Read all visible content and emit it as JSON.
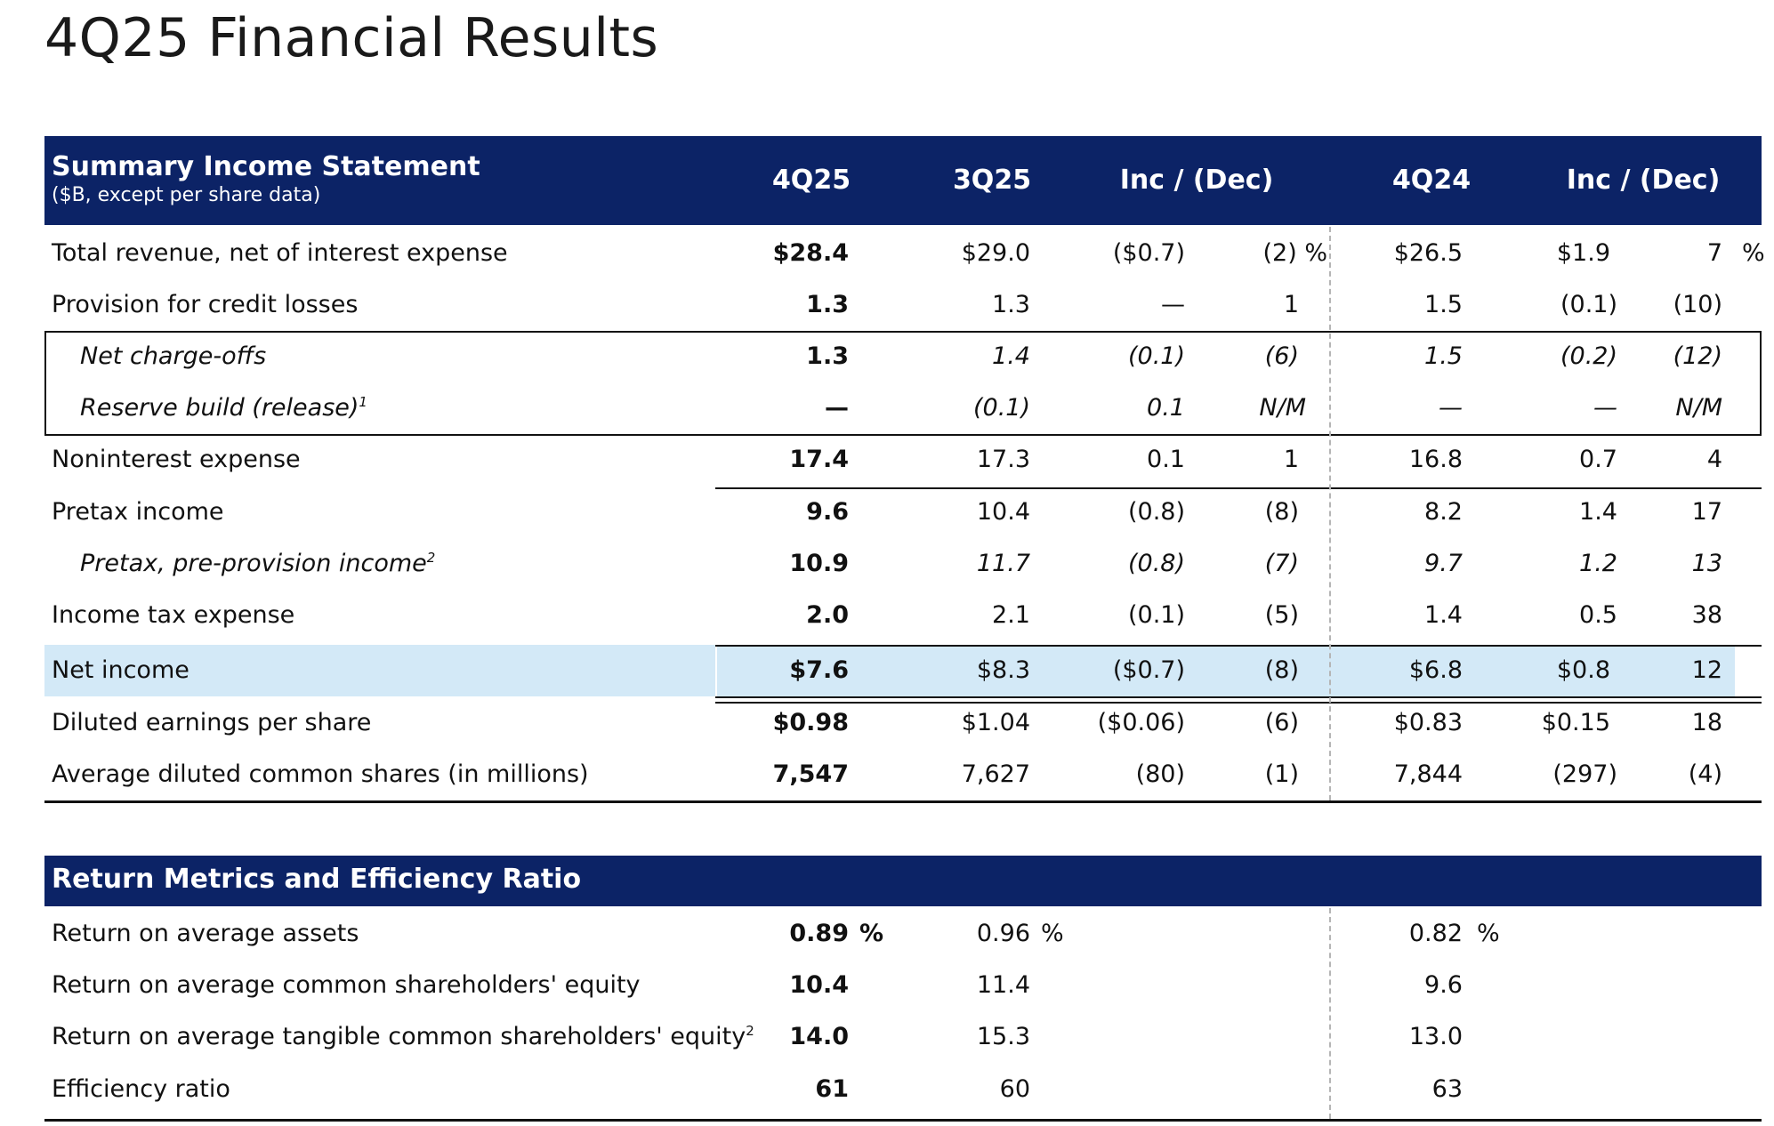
{
  "title": "4Q25 Financial Results",
  "income": {
    "header_title": "Summary Income Statement",
    "header_subtitle": "($B, except per share data)",
    "columns": [
      "4Q25",
      "3Q25",
      "Inc / (Dec)",
      "4Q24",
      "Inc / (Dec)"
    ],
    "rows": [
      {
        "label": "Total revenue, net of interest expense",
        "sup": "",
        "cells": [
          "$28.4",
          "$29.0",
          "($0.7)",
          "(2) %",
          "$26.5",
          "$1.9",
          "7",
          "%"
        ]
      },
      {
        "label": "Provision for credit losses",
        "sup": "",
        "cells": [
          "1.3",
          "1.3",
          "—",
          "1",
          "1.5",
          "(0.1)",
          "(10)",
          ""
        ]
      },
      {
        "label": "Net charge-offs",
        "sup": "",
        "cells": [
          "1.3",
          "1.4",
          "(0.1)",
          "(6)",
          "1.5",
          "(0.2)",
          "(12)",
          ""
        ]
      },
      {
        "label": "Reserve build (release)",
        "sup": "1",
        "cells": [
          "—",
          "(0.1)",
          "0.1",
          "N/M",
          "—",
          "—",
          "N/M",
          ""
        ]
      },
      {
        "label": "Noninterest expense",
        "sup": "",
        "cells": [
          "17.4",
          "17.3",
          "0.1",
          "1",
          "16.8",
          "0.7",
          "4",
          ""
        ]
      },
      {
        "label": "Pretax income",
        "sup": "",
        "cells": [
          "9.6",
          "10.4",
          "(0.8)",
          "(8)",
          "8.2",
          "1.4",
          "17",
          ""
        ]
      },
      {
        "label": "Pretax, pre-provision income",
        "sup": "2",
        "cells": [
          "10.9",
          "11.7",
          "(0.8)",
          "(7)",
          "9.7",
          "1.2",
          "13",
          ""
        ]
      },
      {
        "label": "Income tax expense",
        "sup": "",
        "cells": [
          "2.0",
          "2.1",
          "(0.1)",
          "(5)",
          "1.4",
          "0.5",
          "38",
          ""
        ]
      },
      {
        "label": "Net income",
        "sup": "",
        "cells": [
          "$7.6",
          "$8.3",
          "($0.7)",
          "(8)",
          "$6.8",
          "$0.8",
          "12",
          ""
        ]
      },
      {
        "label": "Diluted earnings per share",
        "sup": "",
        "cells": [
          "$0.98",
          "$1.04",
          "($0.06)",
          "(6)",
          "$0.83",
          "$0.15",
          "18",
          ""
        ]
      },
      {
        "label": "Average diluted common shares (in millions)",
        "sup": "",
        "cells": [
          "7,547",
          "7,627",
          "(80)",
          "(1)",
          "7,844",
          "(297)",
          "(4)",
          ""
        ]
      }
    ]
  },
  "returns": {
    "header_title": "Return Metrics and Efficiency Ratio",
    "rows": [
      {
        "label": "Return on average assets",
        "sup": "",
        "cells": [
          "0.89",
          "%",
          "0.96",
          "%",
          "0.82",
          "%"
        ]
      },
      {
        "label": "Return on average common shareholders' equity",
        "sup": "",
        "cells": [
          "10.4",
          "",
          "11.4",
          "",
          "9.6",
          ""
        ]
      },
      {
        "label": "Return on average tangible common shareholders' equity",
        "sup": "2",
        "cells": [
          "14.0",
          "",
          "15.3",
          "",
          "13.0",
          ""
        ]
      },
      {
        "label": "Efficiency ratio",
        "sup": "",
        "cells": [
          "61",
          "",
          "60",
          "",
          "63",
          ""
        ]
      }
    ]
  },
  "colors": {
    "header_bg": "#0c2366",
    "highlight": "#d3e9f7"
  }
}
